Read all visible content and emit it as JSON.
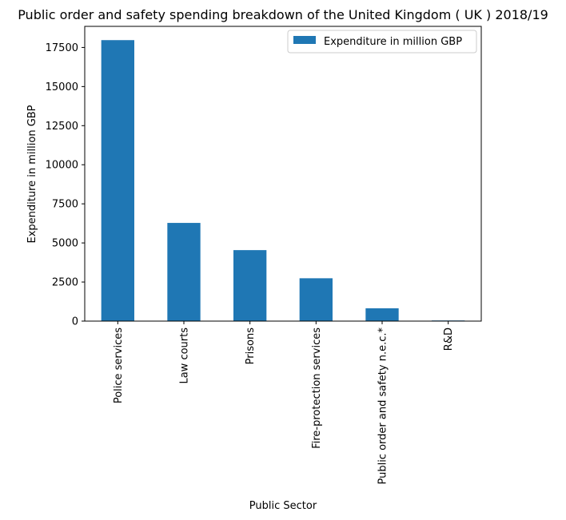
{
  "chart_data": {
    "type": "bar",
    "title": "Public order and safety spending breakdown of the United Kingdom ( UK ) 2018/19",
    "xlabel": "Public Sector",
    "ylabel": "Expenditure in million GBP",
    "categories": [
      "Police services",
      "Law courts",
      "Prisons",
      "Fire-protection services",
      "Public order and safety n.e.c.*",
      "R&D"
    ],
    "series": [
      {
        "name": "Expenditure in million GBP",
        "values": [
          17970,
          6280,
          4540,
          2740,
          820,
          40
        ]
      }
    ],
    "ylim": [
      0,
      18850
    ],
    "yticks": [
      0,
      2500,
      5000,
      7500,
      10000,
      12500,
      15000,
      17500
    ],
    "ytick_labels": [
      "0",
      "2500",
      "5000",
      "7500",
      "10000",
      "12500",
      "15000",
      "17500"
    ],
    "legend_position": "top-right",
    "grid": false,
    "bar_color": "#1f77b4"
  }
}
